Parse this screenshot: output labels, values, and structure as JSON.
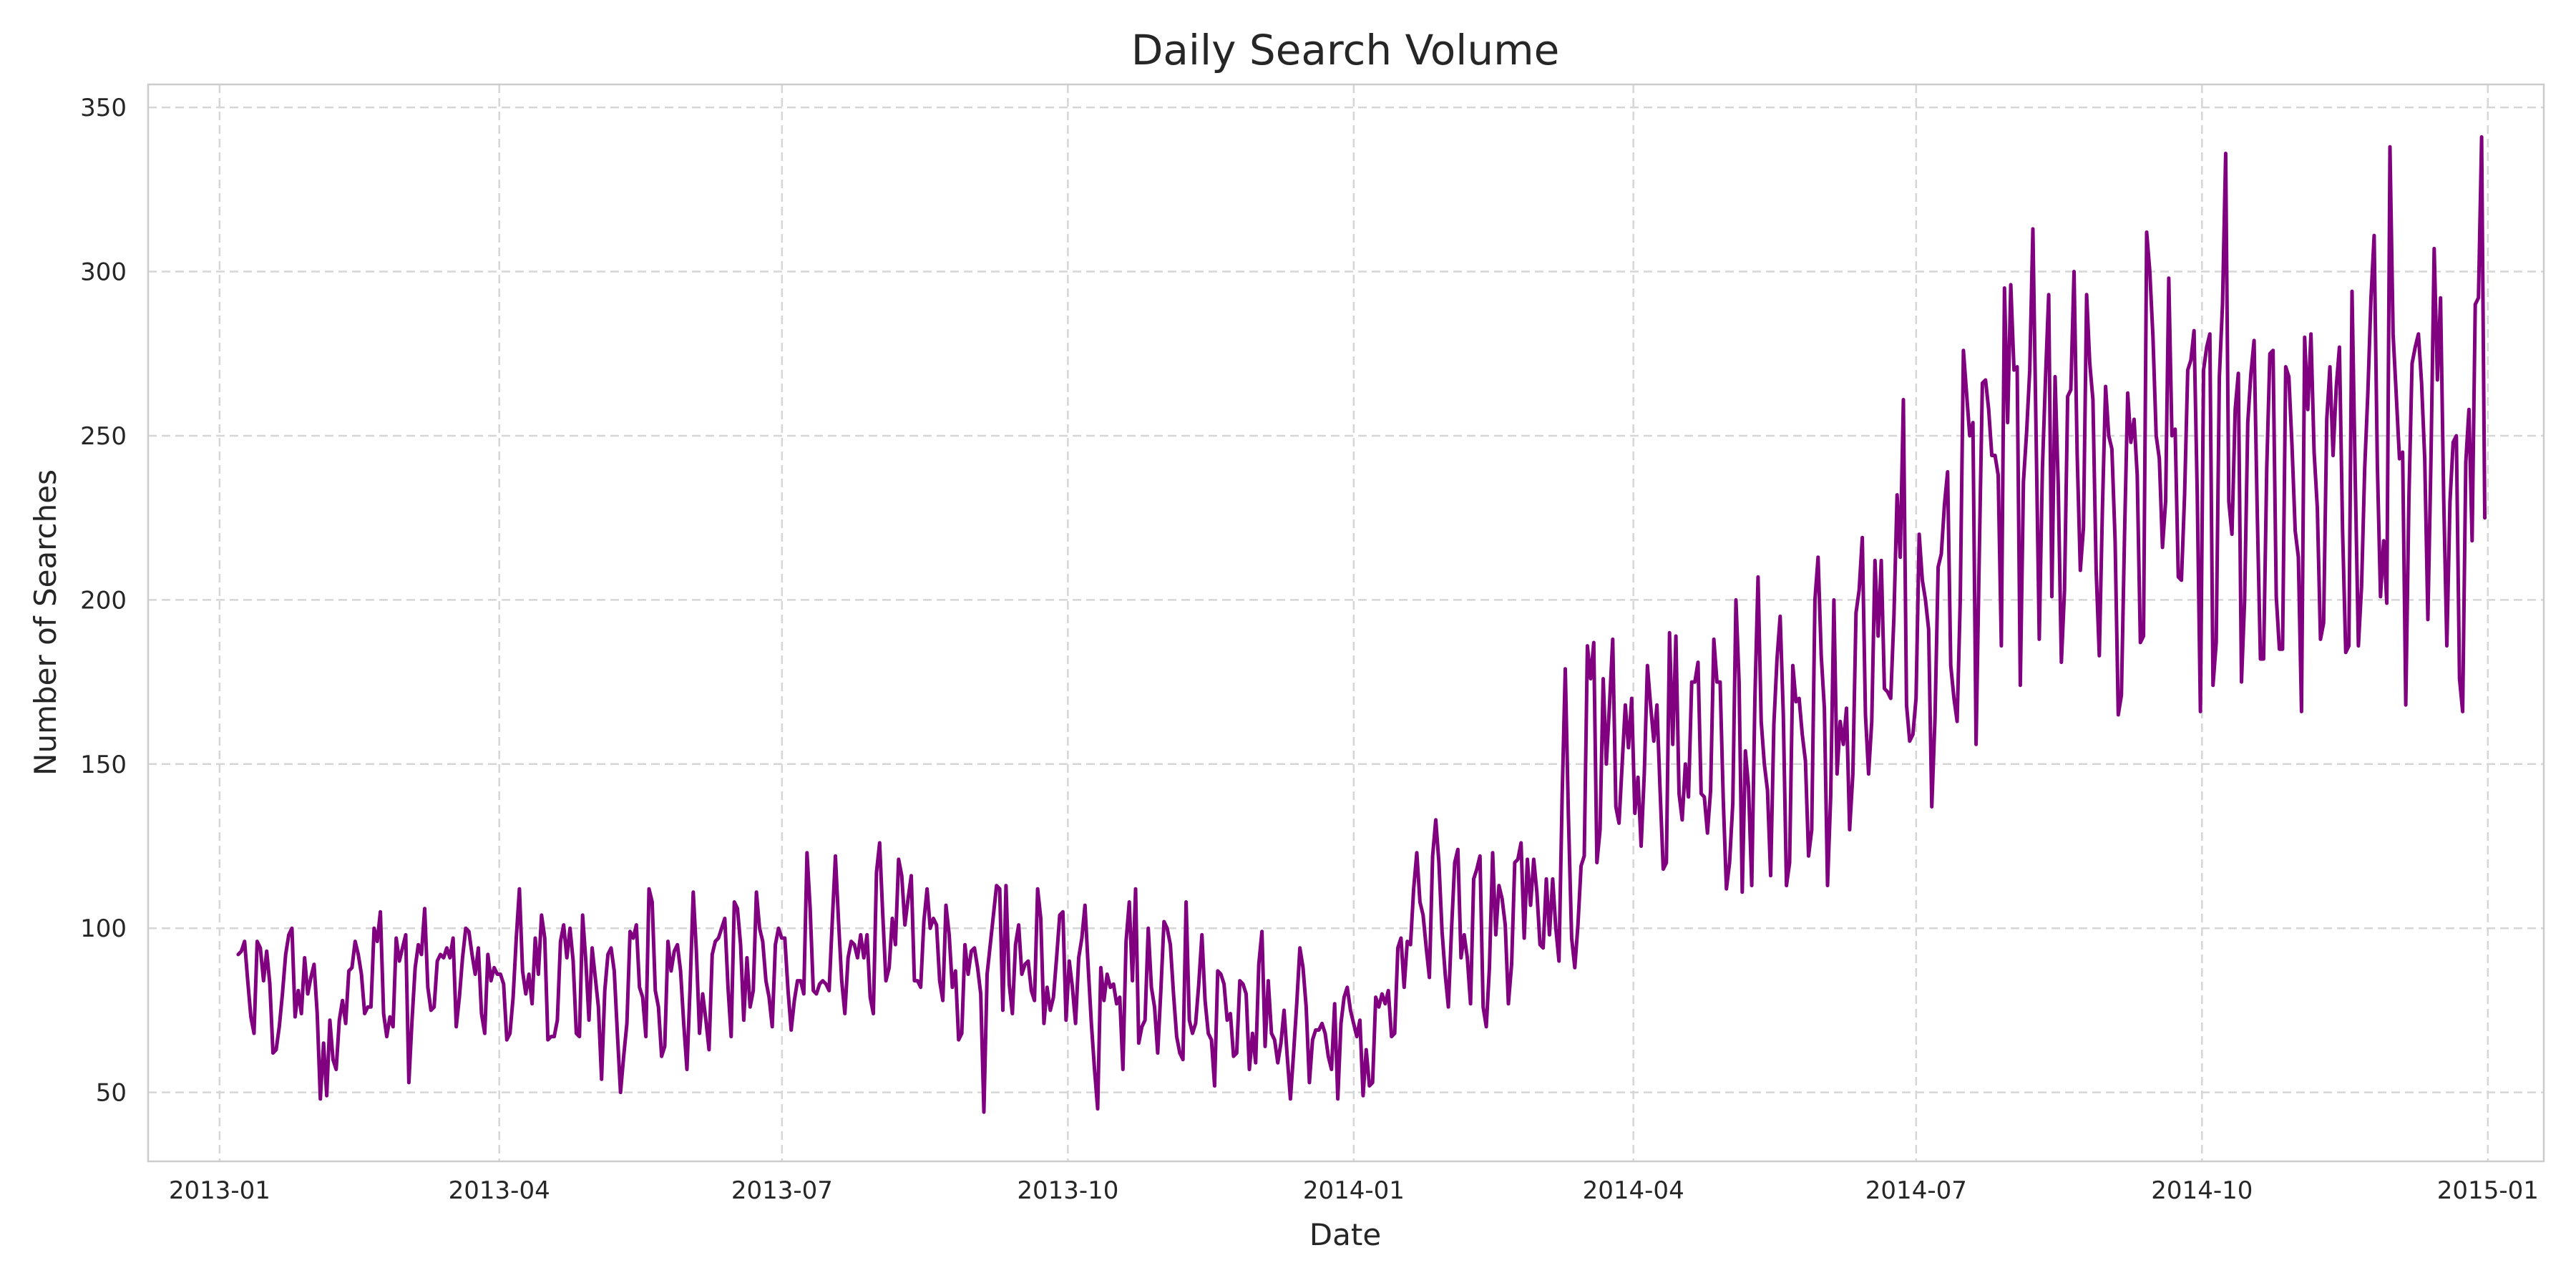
{
  "chart_data": {
    "type": "line",
    "title": "Daily Search Volume",
    "xlabel": "Date",
    "ylabel": "Number of Searches",
    "x_ticks": [
      "2013-01",
      "2013-04",
      "2013-07",
      "2013-10",
      "2014-01",
      "2014-04",
      "2014-07",
      "2014-10",
      "2015-01"
    ],
    "y_ticks": [
      50,
      100,
      150,
      200,
      250,
      300,
      350
    ],
    "xlim": [
      "2012-12-09",
      "2015-01-19"
    ],
    "ylim": [
      29,
      357
    ],
    "grid": true,
    "series": [
      {
        "color": "#800080",
        "x_start": "2013-01-07",
        "x_end": "2014-12-31",
        "values": [
          92,
          93,
          96,
          84,
          73,
          68,
          96,
          94,
          84,
          93,
          83,
          62,
          63,
          70,
          80,
          92,
          98,
          100,
          73,
          81,
          74,
          91,
          80,
          85,
          89,
          74,
          48,
          65,
          49,
          72,
          60,
          57,
          72,
          78,
          71,
          87,
          88,
          96,
          92,
          86,
          74,
          76,
          76,
          100,
          96,
          105,
          74,
          67,
          73,
          70,
          97,
          90,
          94,
          98,
          53,
          72,
          88,
          95,
          92,
          106,
          82,
          75,
          76,
          90,
          92,
          91,
          94,
          91,
          97,
          70,
          79,
          91,
          100,
          99,
          92,
          86,
          94,
          74,
          68,
          92,
          84,
          88,
          86,
          86,
          83,
          66,
          68,
          79,
          97,
          112,
          87,
          80,
          86,
          77,
          97,
          86,
          104,
          97,
          66,
          67,
          67,
          72,
          96,
          101,
          91,
          100,
          90,
          68,
          67,
          104,
          90,
          72,
          94,
          85,
          76,
          54,
          81,
          92,
          94,
          87,
          68,
          50,
          61,
          71,
          99,
          97,
          101,
          82,
          79,
          67,
          112,
          108,
          81,
          76,
          61,
          64,
          96,
          87,
          93,
          95,
          87,
          71,
          57,
          82,
          111,
          93,
          68,
          80,
          72,
          63,
          92,
          96,
          97,
          100,
          103,
          82,
          67,
          108,
          106,
          95,
          72,
          91,
          76,
          81,
          111,
          100,
          96,
          84,
          79,
          70,
          95,
          100,
          97,
          97,
          81,
          69,
          78,
          84,
          84,
          80,
          123,
          106,
          81,
          80,
          83,
          84,
          83,
          81,
          102,
          122,
          102,
          84,
          74,
          91,
          96,
          95,
          91,
          98,
          91,
          98,
          79,
          74,
          117,
          126,
          104,
          84,
          88,
          103,
          95,
          121,
          116,
          101,
          109,
          116,
          84,
          84,
          82,
          102,
          112,
          100,
          103,
          101,
          84,
          78,
          107,
          98,
          82,
          87,
          66,
          68,
          95,
          86,
          93,
          94,
          88,
          80,
          44,
          86,
          95,
          104,
          113,
          112,
          75,
          113,
          83,
          74,
          95,
          101,
          86,
          89,
          90,
          81,
          78,
          112,
          103,
          71,
          82,
          75,
          79,
          91,
          104,
          105,
          72,
          90,
          82,
          71,
          91,
          97,
          107,
          88,
          71,
          57,
          45,
          88,
          78,
          86,
          82,
          83,
          77,
          79,
          57,
          96,
          108,
          84,
          112,
          65,
          70,
          72,
          100,
          82,
          76,
          62,
          81,
          102,
          100,
          95,
          80,
          67,
          62,
          60,
          108,
          72,
          68,
          71,
          83,
          98,
          78,
          68,
          66,
          52,
          87,
          86,
          83,
          72,
          74,
          61,
          62,
          84,
          83,
          80,
          57,
          68,
          59,
          89,
          99,
          64,
          84,
          68,
          66,
          59,
          65,
          75,
          61,
          48,
          62,
          77,
          94,
          88,
          76,
          53,
          66,
          69,
          69,
          71,
          68,
          61,
          57,
          77,
          48,
          71,
          79,
          82,
          75,
          71,
          67,
          72,
          49,
          63,
          52,
          53,
          79,
          76,
          80,
          77,
          81,
          67,
          68,
          94,
          97,
          82,
          96,
          95,
          112,
          123,
          108,
          104,
          94,
          85,
          122,
          133,
          120,
          99,
          86,
          76,
          100,
          120,
          124,
          91,
          98,
          91,
          77,
          115,
          118,
          122,
          76,
          70,
          88,
          123,
          98,
          113,
          109,
          101,
          77,
          89,
          120,
          121,
          126,
          97,
          121,
          107,
          121,
          111,
          95,
          94,
          115,
          98,
          115,
          100,
          90,
          140,
          179,
          134,
          97,
          88,
          101,
          119,
          122,
          186,
          176,
          187,
          120,
          130,
          176,
          150,
          168,
          188,
          137,
          132,
          150,
          168,
          155,
          170,
          135,
          146,
          125,
          147,
          180,
          168,
          157,
          168,
          142,
          118,
          120,
          190,
          156,
          189,
          141,
          133,
          150,
          140,
          175,
          175,
          181,
          141,
          140,
          129,
          142,
          188,
          175,
          175,
          139,
          112,
          120,
          138,
          200,
          175,
          111,
          154,
          143,
          113,
          170,
          207,
          163,
          150,
          142,
          116,
          162,
          182,
          195,
          165,
          113,
          120,
          180,
          169,
          170,
          159,
          151,
          122,
          130,
          200,
          213,
          183,
          167,
          113,
          140,
          200,
          147,
          163,
          156,
          167,
          130,
          147,
          196,
          203,
          219,
          165,
          147,
          163,
          212,
          189,
          212,
          173,
          172,
          170,
          195,
          232,
          213,
          261,
          168,
          157,
          159,
          170,
          220,
          206,
          200,
          191,
          137,
          164,
          210,
          214,
          229,
          239,
          180,
          170,
          163,
          200,
          276,
          263,
          250,
          254,
          156,
          213,
          266,
          267,
          258,
          244,
          244,
          238,
          186,
          295,
          254,
          296,
          270,
          271,
          174,
          236,
          251,
          270,
          313,
          250,
          188,
          240,
          268,
          293,
          201,
          268,
          235,
          181,
          203,
          262,
          264,
          300,
          244,
          209,
          222,
          293,
          272,
          261,
          209,
          183,
          228,
          265,
          250,
          246,
          218,
          165,
          171,
          220,
          263,
          248,
          255,
          238,
          187,
          189,
          312,
          300,
          280,
          250,
          243,
          216,
          230,
          298,
          250,
          252,
          207,
          206,
          232,
          270,
          273,
          282,
          232,
          166,
          270,
          277,
          281,
          174,
          187,
          268,
          290,
          336,
          230,
          220,
          258,
          269,
          175,
          200,
          254,
          269,
          279,
          226,
          182,
          182,
          240,
          275,
          276,
          201,
          185,
          185,
          271,
          268,
          247,
          221,
          213,
          166,
          280,
          258,
          281,
          245,
          228,
          188,
          193,
          255,
          271,
          244,
          265,
          277,
          221,
          184,
          186,
          294,
          237,
          186,
          204,
          240,
          263,
          292,
          311,
          241,
          201,
          218,
          199,
          338,
          281,
          262,
          243,
          245,
          168,
          231,
          272,
          277,
          281,
          266,
          243,
          194,
          244,
          307,
          267,
          292,
          231,
          186,
          230,
          248,
          250,
          176,
          166,
          242,
          258,
          218,
          290,
          292,
          341,
          225
        ]
      }
    ]
  }
}
